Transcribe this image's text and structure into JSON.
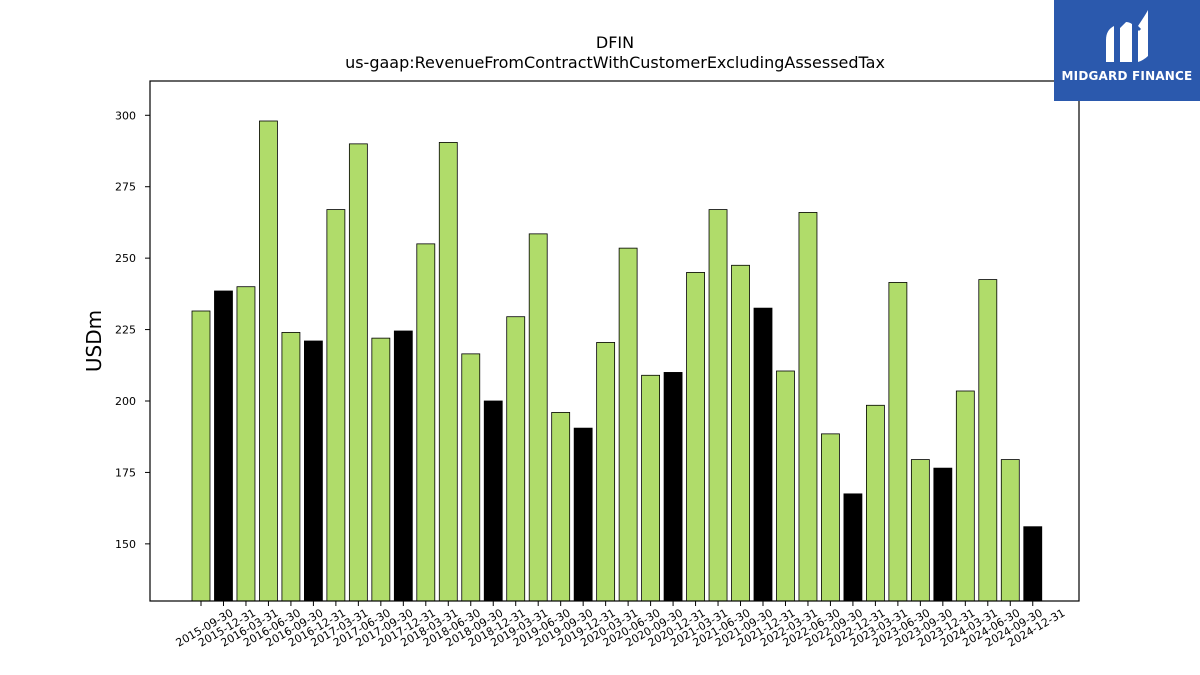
{
  "chart_data": {
    "type": "bar",
    "title": "DFIN",
    "subtitle": "us-gaap:RevenueFromContractWithCustomerExcludingAssessedTax",
    "ylabel": "USDm",
    "xlabel": "",
    "ylim": [
      130,
      312
    ],
    "yticks": [
      150,
      175,
      200,
      225,
      250,
      275,
      300
    ],
    "grid": false,
    "colors": {
      "quarter": "#b0dc6a",
      "year_end": "#000000",
      "edge": "#000000"
    },
    "categories": [
      "2015-09-30",
      "2015-12-31",
      "2016-03-31",
      "2016-06-30",
      "2016-09-30",
      "2016-12-31",
      "2017-03-31",
      "2017-06-30",
      "2017-09-30",
      "2017-12-31",
      "2018-03-31",
      "2018-06-30",
      "2018-09-30",
      "2018-12-31",
      "2019-03-31",
      "2019-06-30",
      "2019-09-30",
      "2019-12-31",
      "2020-03-31",
      "2020-06-30",
      "2020-09-30",
      "2020-12-31",
      "2021-03-31",
      "2021-06-30",
      "2021-09-30",
      "2021-12-31",
      "2022-03-31",
      "2022-06-30",
      "2022-09-30",
      "2022-12-31",
      "2023-03-31",
      "2023-06-30",
      "2023-09-30",
      "2023-12-31",
      "2024-03-31",
      "2024-06-30",
      "2024-09-30",
      "2024-12-31"
    ],
    "values": [
      231.5,
      238.5,
      240,
      298,
      224,
      221,
      267,
      290,
      222,
      224.5,
      255,
      290.5,
      216.5,
      200,
      229.5,
      258.5,
      196,
      190.5,
      220.5,
      253.5,
      209,
      210,
      245,
      267,
      247.5,
      232.5,
      210.5,
      266,
      188.5,
      167.5,
      198.5,
      241.5,
      179.5,
      176.5,
      203.5,
      242.5,
      179.5,
      156
    ]
  },
  "logo": {
    "text": "MIDGARD FINANCE",
    "icon": "midgard-m-icon"
  }
}
